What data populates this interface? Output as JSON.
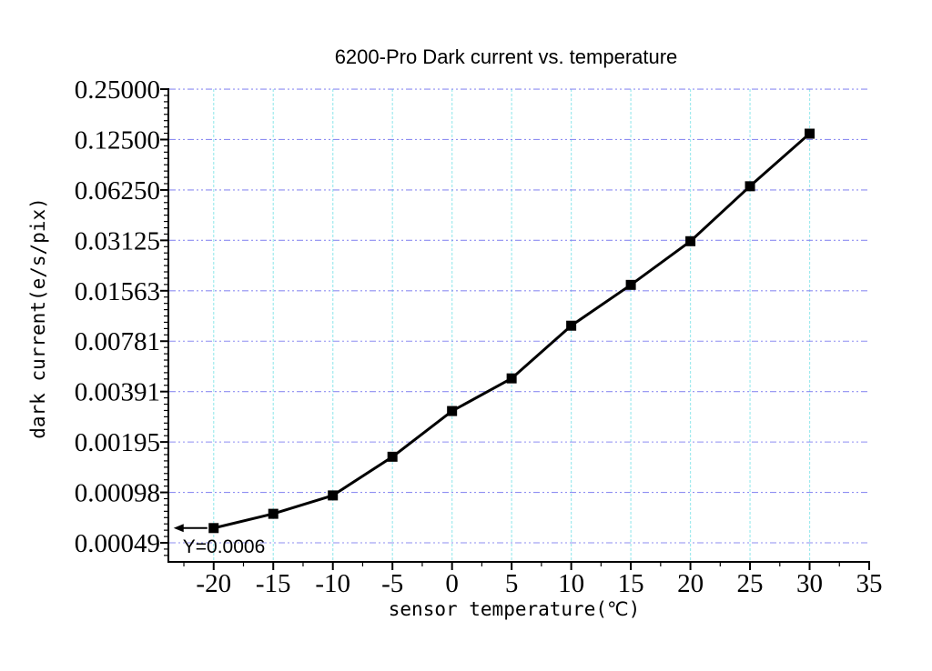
{
  "chart_data": {
    "type": "line",
    "title": "6200-Pro Dark current vs. temperature",
    "xlabel": "sensor temperature(℃)",
    "ylabel": "dark current(e/s/pix)",
    "y_scale": "log2",
    "x_range": [
      -23.8,
      35
    ],
    "series": [
      {
        "name": "dark current",
        "x": [
          -20,
          -15,
          -10,
          -5,
          0,
          5,
          10,
          15,
          20,
          25,
          30
        ],
        "y": [
          0.0006,
          0.00073,
          0.00094,
          0.0016,
          0.003,
          0.0047,
          0.0097,
          0.017,
          0.031,
          0.066,
          0.136
        ]
      }
    ],
    "x_tick_labels": [
      "-20",
      "-15",
      "-10",
      "-5",
      "0",
      "5",
      "10",
      "15",
      "20",
      "25",
      "30",
      "35"
    ],
    "x_tick_values": [
      -20,
      -15,
      -10,
      -5,
      0,
      5,
      10,
      15,
      20,
      25,
      30,
      35
    ],
    "x_minor_tick_values": [
      -22.5,
      -17.5,
      -12.5,
      -7.5,
      -2.5,
      2.5,
      7.5,
      12.5,
      17.5,
      22.5,
      27.5,
      32.5
    ],
    "x_grid_values": [
      -20,
      -15,
      -10,
      -5,
      0,
      5,
      10,
      15,
      20,
      25,
      30
    ],
    "y_tick_labels": [
      "0.25000",
      "0.12500",
      "0.06250",
      "0.03125",
      "0.01563",
      "0.00781",
      "0.00391",
      "0.00195",
      "0.00098",
      "0.00049"
    ],
    "y_tick_values": [
      0.25,
      0.125,
      0.0625,
      0.03125,
      0.01563,
      0.00781,
      0.00391,
      0.00195,
      0.00098,
      0.00049
    ],
    "annotation": {
      "text": "Y=0.0006",
      "target_x": -20,
      "target_y": 0.0006,
      "arrow": "left"
    },
    "grid": {
      "vertical": "dotted",
      "horizontal": "dash-dot",
      "on": true
    },
    "legend": "none",
    "marker": "filled-square",
    "colors": {
      "line": "#000000",
      "marker": "#000000",
      "v_grid": "#9feaee",
      "h_grid": "#7b7bf0",
      "axis": "#000000",
      "background": "#ffffff",
      "text": "#000000"
    }
  }
}
